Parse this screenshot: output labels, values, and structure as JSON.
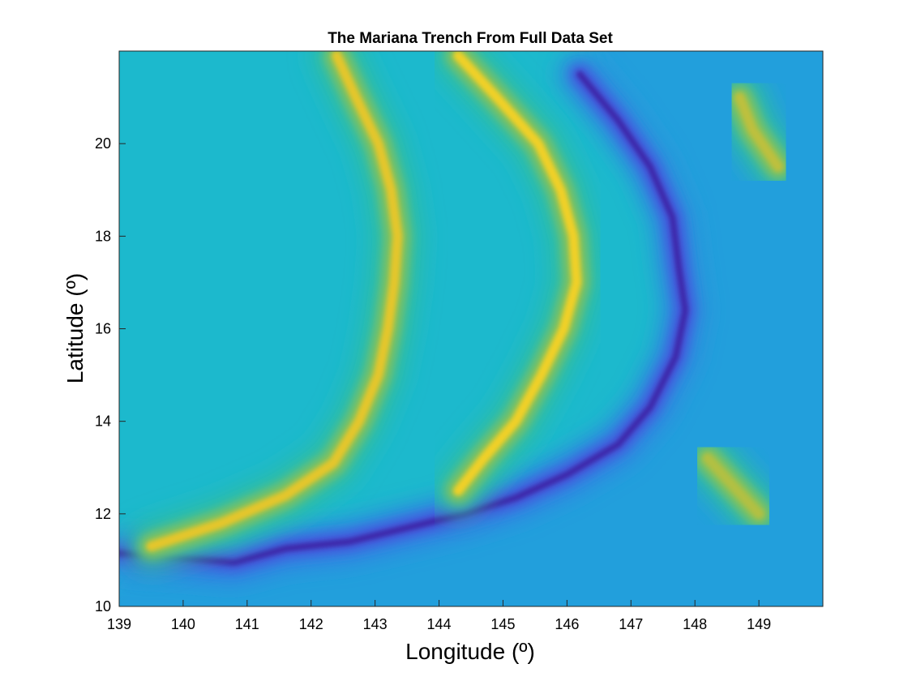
{
  "chart_data": {
    "type": "heatmap",
    "title": "The Mariana Trench From Full Data Set",
    "xlabel": "Longitude (º)",
    "ylabel": "Latitude (º)",
    "xlim": [
      139,
      150
    ],
    "ylim": [
      10,
      22
    ],
    "xticks": [
      139,
      140,
      141,
      142,
      143,
      144,
      145,
      146,
      147,
      148,
      149
    ],
    "yticks": [
      10,
      12,
      14,
      16,
      18,
      20
    ],
    "grid": false,
    "legend": "none",
    "colormap": "parula",
    "colors": {
      "deepest": "#3e26a8",
      "trench": "#4a6cf0",
      "deep_basin": "#1cb8cf",
      "mid": "#2ebd9d",
      "ridge": "#b6c22c",
      "shallowest": "#f6d524"
    },
    "features": [
      {
        "name": "trench",
        "points": [
          [
            139.0,
            11.15
          ],
          [
            140.0,
            11.05
          ],
          [
            140.8,
            10.95
          ],
          [
            141.6,
            11.25
          ],
          [
            142.6,
            11.4
          ],
          [
            143.5,
            11.7
          ],
          [
            144.4,
            12.0
          ],
          [
            145.2,
            12.35
          ],
          [
            146.0,
            12.85
          ],
          [
            146.8,
            13.5
          ],
          [
            147.3,
            14.3
          ],
          [
            147.7,
            15.4
          ],
          [
            147.85,
            16.4
          ],
          [
            147.75,
            17.3
          ],
          [
            147.65,
            18.4
          ],
          [
            147.3,
            19.5
          ],
          [
            146.8,
            20.5
          ],
          [
            146.2,
            21.5
          ]
        ],
        "level": 0.05
      },
      {
        "name": "west-ridge",
        "points": [
          [
            142.4,
            21.9
          ],
          [
            142.7,
            21.0
          ],
          [
            143.05,
            20.0
          ],
          [
            143.25,
            19.0
          ],
          [
            143.35,
            18.0
          ],
          [
            143.3,
            17.0
          ],
          [
            143.2,
            16.0
          ],
          [
            143.05,
            15.0
          ],
          [
            142.75,
            14.0
          ],
          [
            142.35,
            13.1
          ],
          [
            141.6,
            12.4
          ],
          [
            140.6,
            11.8
          ],
          [
            139.5,
            11.3
          ]
        ],
        "level": 0.9
      },
      {
        "name": "volcanic-arc",
        "points": [
          [
            144.3,
            21.9
          ],
          [
            144.9,
            21.0
          ],
          [
            145.55,
            20.0
          ],
          [
            145.9,
            19.0
          ],
          [
            146.1,
            18.0
          ],
          [
            146.15,
            17.0
          ],
          [
            145.95,
            16.0
          ],
          [
            145.6,
            15.0
          ],
          [
            145.2,
            14.0
          ],
          [
            144.7,
            13.2
          ],
          [
            144.3,
            12.5
          ]
        ],
        "level": 0.96
      },
      {
        "name": "seamount-east",
        "points": [
          [
            148.7,
            21.0
          ],
          [
            148.9,
            20.3
          ],
          [
            149.3,
            19.5
          ]
        ],
        "level": 0.8
      },
      {
        "name": "seamount-southeast",
        "points": [
          [
            148.2,
            13.2
          ],
          [
            148.6,
            12.6
          ],
          [
            149.0,
            12.0
          ]
        ],
        "level": 0.78
      }
    ],
    "background_level": 0.42,
    "east_plate_level": 0.33
  }
}
